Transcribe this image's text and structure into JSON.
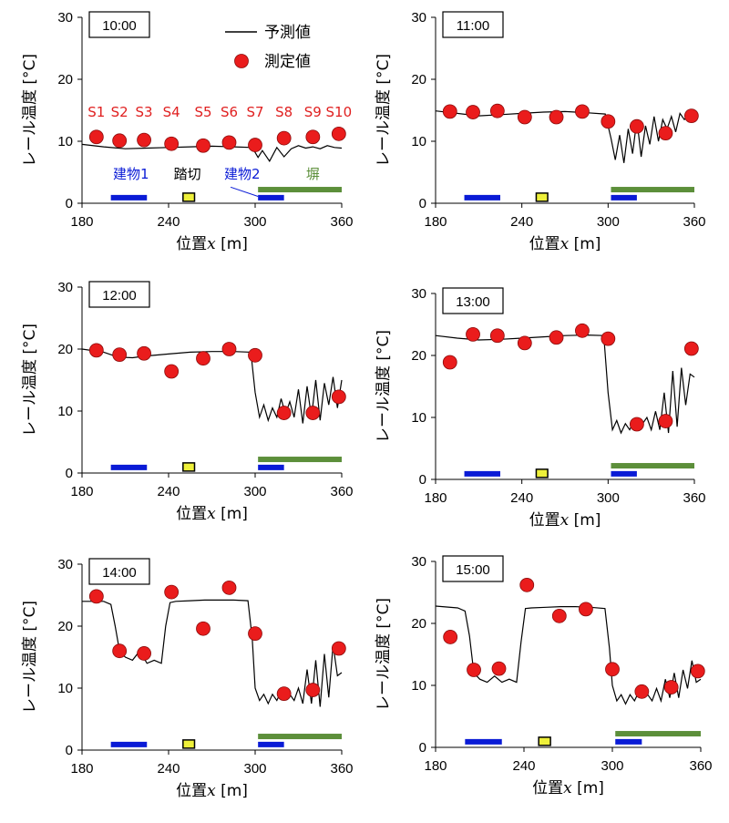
{
  "legend": {
    "pred": "予測値",
    "meas": "測定値"
  },
  "axes": {
    "xlabel_main": "位置",
    "xlabel_var": "x",
    "xlabel_unit": " [m]",
    "ylabel": "レール温度 [°C]"
  },
  "colors": {
    "marker": "#ea1c1c",
    "building": "#0a1bd6",
    "crossing": "#eef03a",
    "embank": "#5c8f3a",
    "stationLabel": "#e02020"
  },
  "annotations": {
    "stations": [
      "S1",
      "S2",
      "S3",
      "S4",
      "S5",
      "S6",
      "S7",
      "S8",
      "S9",
      "S10"
    ],
    "building1": "建物1",
    "crossing": "踏切",
    "building2": "建物2",
    "embankment": "塀"
  },
  "chart_data": [
    {
      "type": "line",
      "time": "10:00",
      "xlim": [
        180,
        360
      ],
      "ylim": [
        0,
        30
      ],
      "xticks": [
        180,
        240,
        300,
        360
      ],
      "yticks": [
        0,
        10,
        20,
        30
      ],
      "series": [
        {
          "name": "予測値",
          "kind": "line",
          "x": [
            180,
            195,
            210,
            225,
            240,
            255,
            270,
            285,
            298,
            302,
            305,
            310,
            315,
            320,
            325,
            330,
            335,
            340,
            345,
            350,
            355,
            360
          ],
          "y": [
            9.5,
            9.1,
            8.8,
            8.9,
            9.0,
            9.1,
            9.2,
            9.1,
            9.0,
            7.4,
            8.5,
            6.8,
            9.0,
            7.5,
            8.8,
            9.3,
            8.9,
            9.1,
            8.8,
            9.3,
            9.0,
            8.9
          ]
        },
        {
          "name": "測定値",
          "kind": "scatter",
          "x": [
            190,
            206,
            223,
            242,
            264,
            282,
            300,
            320,
            340,
            358
          ],
          "y": [
            10.7,
            10.1,
            10.2,
            9.6,
            9.3,
            9.8,
            9.4,
            10.5,
            10.7,
            11.2
          ]
        }
      ]
    },
    {
      "type": "line",
      "time": "11:00",
      "xlim": [
        180,
        360
      ],
      "ylim": [
        0,
        30
      ],
      "xticks": [
        180,
        240,
        300,
        360
      ],
      "yticks": [
        0,
        10,
        20,
        30
      ],
      "series": [
        {
          "name": "予測値",
          "kind": "line",
          "x": [
            180,
            195,
            210,
            225,
            240,
            255,
            270,
            285,
            298,
            302,
            305,
            308,
            311,
            314,
            317,
            320,
            323,
            326,
            329,
            332,
            335,
            338,
            341,
            344,
            347,
            350,
            353,
            356,
            360
          ],
          "y": [
            14.9,
            14.5,
            14.1,
            14.3,
            14.5,
            14.7,
            14.8,
            14.6,
            14.4,
            10.5,
            7.0,
            11.0,
            6.5,
            12.0,
            8.0,
            13.5,
            7.5,
            12.5,
            9.5,
            14.0,
            10.0,
            13.5,
            12.0,
            14.0,
            11.5,
            14.5,
            13.5,
            14.2,
            14.0
          ]
        },
        {
          "name": "測定値",
          "kind": "scatter",
          "x": [
            190,
            206,
            223,
            242,
            264,
            282,
            300,
            320,
            340,
            358
          ],
          "y": [
            14.8,
            14.7,
            14.9,
            13.9,
            13.9,
            14.8,
            13.2,
            12.4,
            11.3,
            14.1
          ]
        }
      ]
    },
    {
      "type": "line",
      "time": "12:00",
      "xlim": [
        180,
        360
      ],
      "ylim": [
        0,
        30
      ],
      "xticks": [
        180,
        240,
        300,
        360
      ],
      "yticks": [
        0,
        10,
        20,
        30
      ],
      "series": [
        {
          "name": "予測値",
          "kind": "line",
          "x": [
            180,
            195,
            205,
            215,
            225,
            240,
            255,
            270,
            285,
            297,
            300,
            303,
            306,
            309,
            312,
            315,
            318,
            321,
            324,
            327,
            330,
            333,
            336,
            339,
            342,
            345,
            348,
            351,
            354,
            357,
            360
          ],
          "y": [
            20.0,
            19.5,
            18.7,
            18.6,
            18.9,
            19.2,
            19.5,
            19.6,
            19.6,
            19.5,
            13.0,
            9.0,
            11.0,
            8.5,
            10.5,
            9.0,
            12.0,
            9.5,
            11.5,
            9.0,
            13.5,
            8.0,
            14.0,
            9.0,
            15.0,
            8.5,
            14.5,
            11.0,
            15.5,
            10.5,
            15.0
          ]
        },
        {
          "name": "測定値",
          "kind": "scatter",
          "x": [
            190,
            206,
            223,
            242,
            264,
            282,
            300,
            320,
            340,
            358
          ],
          "y": [
            19.8,
            19.1,
            19.3,
            16.4,
            18.5,
            20.0,
            19.0,
            9.7,
            9.7,
            12.3
          ]
        }
      ]
    },
    {
      "type": "line",
      "time": "13:00",
      "xlim": [
        180,
        360
      ],
      "ylim": [
        0,
        30
      ],
      "xticks": [
        180,
        240,
        300,
        360
      ],
      "yticks": [
        0,
        10,
        20,
        30
      ],
      "series": [
        {
          "name": "予測値",
          "kind": "line",
          "x": [
            180,
            195,
            210,
            225,
            240,
            255,
            270,
            285,
            297,
            300,
            303,
            306,
            309,
            312,
            315,
            318,
            321,
            324,
            327,
            330,
            333,
            336,
            339,
            342,
            345,
            348,
            351,
            354,
            357,
            360
          ],
          "y": [
            23.2,
            22.8,
            22.5,
            22.6,
            22.8,
            23.0,
            23.2,
            23.3,
            23.2,
            14.0,
            8.0,
            9.5,
            7.5,
            9.0,
            8.0,
            9.5,
            8.5,
            9.0,
            10.0,
            8.0,
            11.0,
            8.0,
            14.0,
            7.5,
            17.5,
            8.5,
            18.0,
            12.0,
            17.0,
            16.5
          ]
        },
        {
          "name": "測定値",
          "kind": "scatter",
          "x": [
            190,
            206,
            223,
            242,
            264,
            282,
            300,
            320,
            340,
            358
          ],
          "y": [
            18.9,
            23.4,
            23.2,
            22.0,
            22.9,
            24.0,
            22.7,
            8.9,
            9.4,
            21.1
          ]
        }
      ]
    },
    {
      "type": "line",
      "time": "14:00",
      "xlim": [
        180,
        360
      ],
      "ylim": [
        0,
        30
      ],
      "xticks": [
        180,
        240,
        300,
        360
      ],
      "yticks": [
        0,
        10,
        20,
        30
      ],
      "series": [
        {
          "name": "予測値",
          "kind": "line",
          "x": [
            180,
            195,
            200,
            203,
            206,
            210,
            215,
            220,
            225,
            230,
            235,
            238,
            241,
            245,
            255,
            265,
            275,
            285,
            295,
            298,
            300,
            303,
            306,
            309,
            312,
            315,
            318,
            321,
            324,
            327,
            330,
            333,
            336,
            339,
            342,
            345,
            348,
            351,
            354,
            357,
            360
          ],
          "y": [
            24.0,
            24.0,
            23.5,
            20.0,
            16.0,
            15.0,
            14.5,
            16.0,
            14.0,
            14.5,
            14.0,
            20.0,
            23.8,
            24.0,
            24.1,
            24.2,
            24.2,
            24.2,
            24.1,
            18.0,
            10.0,
            8.0,
            9.0,
            7.5,
            9.0,
            8.0,
            9.5,
            8.5,
            9.0,
            8.0,
            10.0,
            7.5,
            13.0,
            7.5,
            14.5,
            7.0,
            15.5,
            8.5,
            17.0,
            12.0,
            12.5
          ]
        },
        {
          "name": "測定値",
          "kind": "scatter",
          "x": [
            190,
            206,
            223,
            242,
            264,
            282,
            300,
            320,
            340,
            358
          ],
          "y": [
            24.8,
            16.0,
            15.6,
            25.5,
            19.6,
            26.2,
            18.8,
            9.1,
            9.7,
            16.4
          ]
        }
      ]
    },
    {
      "type": "line",
      "time": "15:00",
      "xlim": [
        180,
        360
      ],
      "ylim": [
        0,
        30
      ],
      "xticks": [
        180,
        240,
        300,
        360
      ],
      "yticks": [
        0,
        10,
        20,
        30
      ],
      "series": [
        {
          "name": "予測値",
          "kind": "line",
          "x": [
            180,
            195,
            200,
            203,
            206,
            210,
            215,
            220,
            225,
            230,
            235,
            238,
            241,
            245,
            255,
            265,
            275,
            285,
            295,
            298,
            300,
            303,
            306,
            309,
            312,
            315,
            318,
            321,
            324,
            327,
            330,
            333,
            336,
            339,
            342,
            345,
            348,
            351,
            354,
            357,
            360
          ],
          "y": [
            22.8,
            22.5,
            22.0,
            18.0,
            12.0,
            11.0,
            10.5,
            11.5,
            10.5,
            11.0,
            10.5,
            17.0,
            22.4,
            22.5,
            22.6,
            22.7,
            22.7,
            22.6,
            22.4,
            16.0,
            10.0,
            7.5,
            8.5,
            7.0,
            8.5,
            7.5,
            9.0,
            8.0,
            8.5,
            7.5,
            9.5,
            7.5,
            11.0,
            8.0,
            12.0,
            8.0,
            12.5,
            9.5,
            14.0,
            10.5,
            11.0
          ]
        },
        {
          "name": "測定値",
          "kind": "scatter",
          "x": [
            190,
            206,
            223,
            242,
            264,
            282,
            300,
            320,
            340,
            358
          ],
          "y": [
            17.8,
            12.5,
            12.7,
            26.2,
            21.2,
            22.3,
            12.6,
            9.0,
            9.7,
            12.3
          ]
        }
      ]
    }
  ],
  "features": {
    "building1": [
      200,
      225
    ],
    "crossing": [
      250,
      258
    ],
    "building2": [
      302,
      320
    ],
    "embankment": [
      302,
      360
    ]
  }
}
